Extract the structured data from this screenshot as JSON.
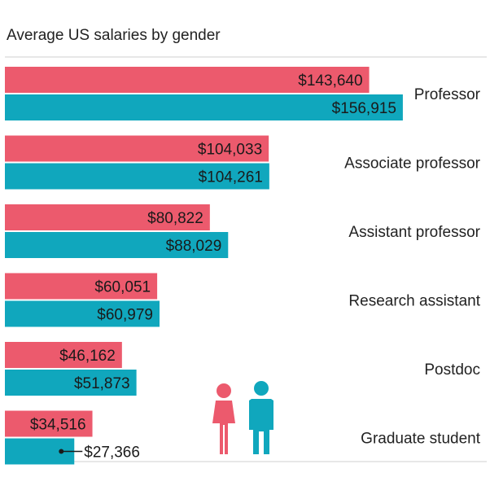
{
  "chart_data": {
    "type": "bar",
    "orientation": "horizontal",
    "title": "Average US salaries by gender",
    "categories": [
      "Professor",
      "Associate professor",
      "Assistant professor",
      "Research assistant",
      "Postdoc",
      "Graduate student"
    ],
    "series": [
      {
        "color": "#ec5a6d",
        "values": [
          143640,
          104033,
          80822,
          60051,
          46162,
          34516
        ],
        "labels": [
          "$143,640",
          "$104,033",
          "$80,822",
          "$60,051",
          "$46,162",
          "$34,516"
        ]
      },
      {
        "color": "#10a7bd",
        "values": [
          156915,
          104261,
          88029,
          60979,
          51873,
          27366
        ],
        "labels": [
          "$156,915",
          "$104,261",
          "$88,029",
          "$60,979",
          "$51,873",
          "$27,366"
        ]
      }
    ],
    "xlim": [
      0,
      190000
    ],
    "grid": false,
    "legend": "icons bottom-center",
    "icons": [
      "female-figure-icon",
      "male-figure-icon"
    ]
  }
}
